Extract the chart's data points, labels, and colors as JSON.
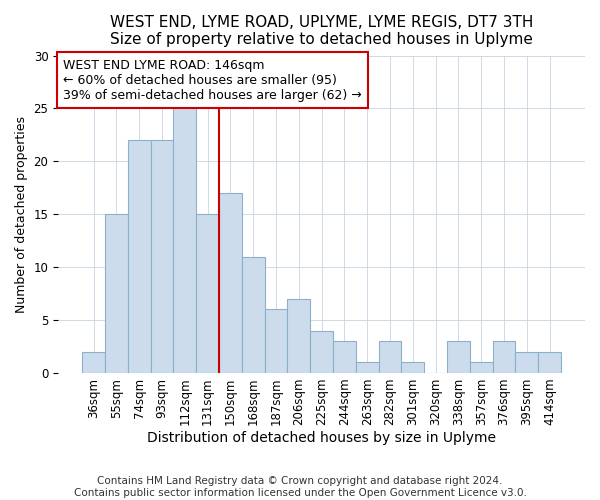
{
  "title": "WEST END, LYME ROAD, UPLYME, LYME REGIS, DT7 3TH",
  "subtitle": "Size of property relative to detached houses in Uplyme",
  "xlabel": "Distribution of detached houses by size in Uplyme",
  "ylabel": "Number of detached properties",
  "categories": [
    "36sqm",
    "55sqm",
    "74sqm",
    "93sqm",
    "112sqm",
    "131sqm",
    "150sqm",
    "168sqm",
    "187sqm",
    "206sqm",
    "225sqm",
    "244sqm",
    "263sqm",
    "282sqm",
    "301sqm",
    "320sqm",
    "338sqm",
    "357sqm",
    "376sqm",
    "395sqm",
    "414sqm"
  ],
  "values": [
    2,
    15,
    22,
    22,
    25,
    15,
    17,
    11,
    6,
    7,
    4,
    3,
    1,
    3,
    1,
    0,
    3,
    1,
    3,
    2,
    2
  ],
  "bar_color": "#ccdcec",
  "bar_edge_color": "#8ab0cc",
  "vline_x": 6.0,
  "vline_color": "#cc0000",
  "annotation_text": "WEST END LYME ROAD: 146sqm\n← 60% of detached houses are smaller (95)\n39% of semi-detached houses are larger (62) →",
  "annotation_box_color": "#ffffff",
  "annotation_box_edge": "#cc0000",
  "ylim": [
    0,
    30
  ],
  "yticks": [
    0,
    5,
    10,
    15,
    20,
    25,
    30
  ],
  "footer1": "Contains HM Land Registry data © Crown copyright and database right 2024.",
  "footer2": "Contains public sector information licensed under the Open Government Licence v3.0.",
  "bg_color": "#ffffff",
  "plot_bg_color": "#ffffff",
  "title_fontsize": 11,
  "xlabel_fontsize": 10,
  "ylabel_fontsize": 9,
  "tick_fontsize": 8.5,
  "annot_fontsize": 9,
  "footer_fontsize": 7.5
}
